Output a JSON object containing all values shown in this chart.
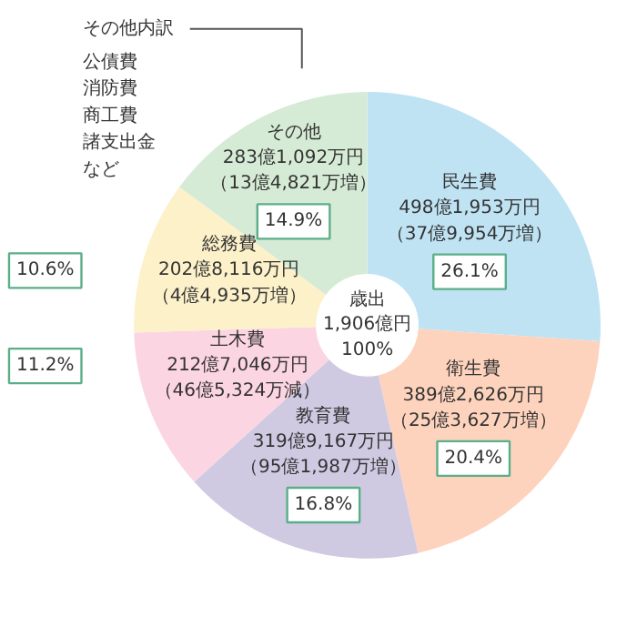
{
  "chart_data": {
    "type": "donut",
    "title": "歳出\n1,906億円\n100%",
    "categories": [
      "民生費",
      "衛生費",
      "教育費",
      "土木費",
      "総務費",
      "その他"
    ],
    "values": [
      26.1,
      20.4,
      16.8,
      11.2,
      10.6,
      14.9
    ],
    "value_labels": [
      "26.1%",
      "20.4%",
      "16.8%",
      "11.2%",
      "10.6%",
      "14.9%"
    ],
    "colors": [
      "#bfe3f3",
      "#fdd3bd",
      "#cfcae2",
      "#fcd5e2",
      "#fdf1ca",
      "#d6ebd6"
    ],
    "annotations": [
      "498億1,953万円",
      "（37億9,954万増）",
      "389億2,626万円",
      "（25億3,627万増）",
      "319億9,167万円",
      "（95億1,987万増）",
      "212億7,046万円",
      "（46億5,324万減）",
      "202億8,116万円",
      "（4億4,935万増）",
      "283億1,092万円",
      "（13億4,821万増）",
      "その他内訳",
      "公債費",
      "消防費",
      "商工費",
      "諸支出金",
      "など"
    ]
  }
}
